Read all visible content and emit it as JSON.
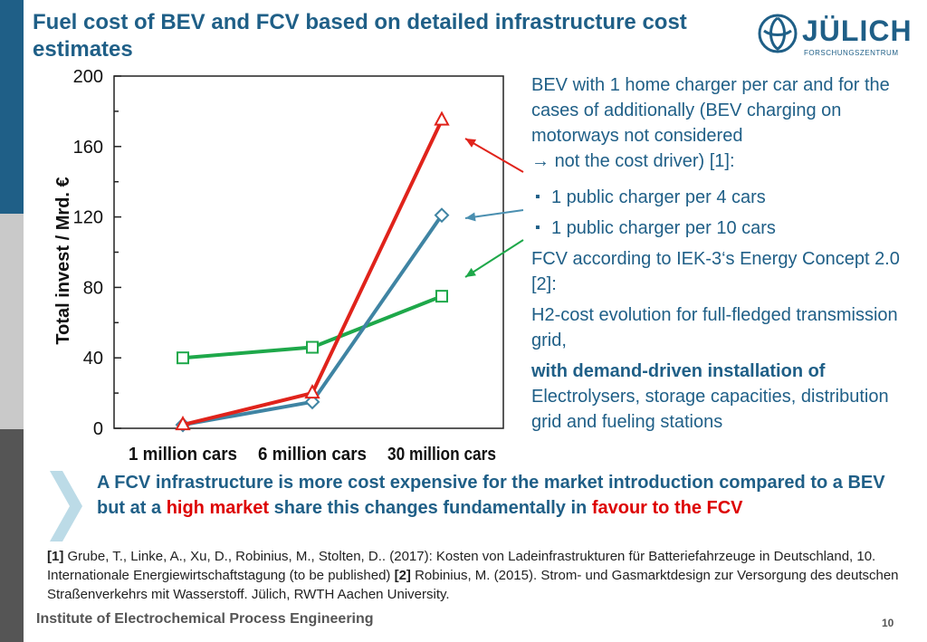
{
  "title": "Fuel cost of BEV and FCV based on detailed infrastructure cost estimates",
  "logo": {
    "word": "JÜLICH",
    "sub": "FORSCHUNGSZENTRUM"
  },
  "chart_data": {
    "type": "line",
    "categories": [
      "1 million cars",
      "6 million cars",
      "30 million cars"
    ],
    "ylabel": "Total invest / Mrd. €",
    "ylim": [
      0,
      200
    ],
    "yticks": [
      "0",
      "40",
      "80",
      "120",
      "160",
      "200"
    ],
    "grid": false,
    "series": [
      {
        "values": [
          40,
          46,
          75
        ],
        "color": "#1ea84a",
        "marker": "square"
      },
      {
        "values": [
          2,
          15,
          121
        ],
        "color": "#3f84a3",
        "marker": "diamond"
      },
      {
        "values": [
          2,
          20,
          175
        ],
        "color": "#e0231b",
        "marker": "triangle"
      }
    ],
    "annotation_arrows": [
      {
        "color": "#e0231b"
      },
      {
        "color": "#4a8fb0"
      },
      {
        "color": "#1ea84a"
      }
    ]
  },
  "right": {
    "intro": "BEV with 1 home charger per car and for the cases of additionally (BEV charging on motorways not considered",
    "intro_cont": "not the cost driver) [1]:",
    "bullet1": "1 public charger per 4 cars",
    "bullet2": "1 public charger per 10 cars",
    "fcv": "FCV according to IEK-3‘s Energy Concept 2.0 [2]:",
    "h2": "H2-cost evolution for full-fledged transmission grid,",
    "demand_bold": "with demand-driven installation of",
    "demand_rest": "Electrolysers, storage capacities, distribution grid and fueling stations"
  },
  "conclusion": {
    "part1": "A FCV infrastructure is more cost expensive for the market introduction compared to a BEV but at a",
    "highlight": "high market",
    "part2": "share this changes fundamentally in",
    "part3": "favour to the FCV"
  },
  "refs": {
    "ref1_tag": "[1]",
    "ref1": "Grube, T., Linke, A., Xu, D., Robinius, M., Stolten, D.. (2017): Kosten von Ladeinfrastrukturen für Batteriefahrzeuge in Deutschland, 10. Internationale Energiewirtschaftstagung (to be published)",
    "ref2_tag": "[2]",
    "ref2": "Robinius, M. (2015). Strom- und Gasmarktdesign zur Versorgung des deutschen Straßenverkehrs mit Wasserstoff. Jülich, RWTH Aachen University."
  },
  "footer": "Institute of Electrochemical Process Engineering",
  "page_number": "10"
}
